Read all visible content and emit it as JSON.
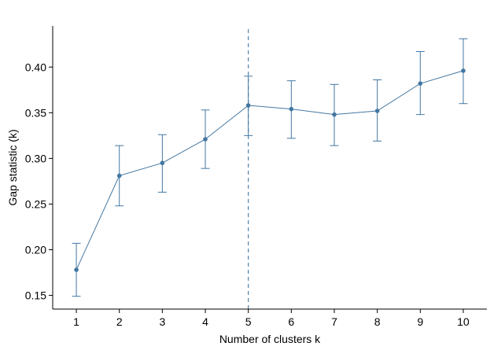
{
  "chart_data": {
    "type": "line",
    "title": "",
    "xlabel": "Number of clusters k",
    "ylabel": "Gap statistic (k)",
    "x": [
      1,
      2,
      3,
      4,
      5,
      6,
      7,
      8,
      9,
      10
    ],
    "series": [
      {
        "values": [
          0.178,
          0.281,
          0.295,
          0.321,
          0.358,
          0.354,
          0.348,
          0.352,
          0.382,
          0.396
        ],
        "error_lower": [
          0.149,
          0.248,
          0.263,
          0.289,
          0.325,
          0.322,
          0.314,
          0.319,
          0.348,
          0.36
        ],
        "error_upper": [
          0.207,
          0.314,
          0.326,
          0.353,
          0.39,
          0.385,
          0.381,
          0.386,
          0.417,
          0.431
        ]
      }
    ],
    "xticks": [
      "1",
      "2",
      "3",
      "4",
      "5",
      "6",
      "7",
      "8",
      "9",
      "10"
    ],
    "yticks": [
      "0.15",
      "0.20",
      "0.25",
      "0.30",
      "0.35",
      "0.40"
    ],
    "ytick_values": [
      0.15,
      0.2,
      0.25,
      0.3,
      0.35,
      0.4
    ],
    "xlim": [
      0.45,
      10.55
    ],
    "ylim": [
      0.135,
      0.445
    ],
    "reference_line_x": 5,
    "grid": false,
    "legend": "none",
    "colors": {
      "series": "#4377a2",
      "axis": "#000000"
    }
  }
}
